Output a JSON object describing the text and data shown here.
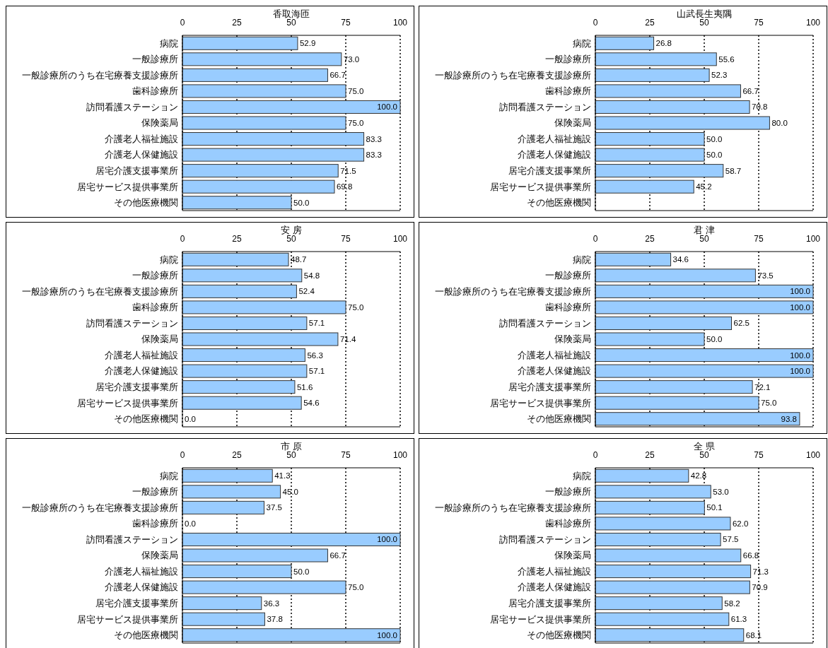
{
  "chart_data": [
    {
      "type": "bar",
      "orientation": "horizontal",
      "title": "香取海匝",
      "categories": [
        "病院",
        "一般診療所",
        "一般診療所のうち在宅療養支援診療所",
        "歯科診療所",
        "訪問看護ステーション",
        "保険薬局",
        "介護老人福祉施設",
        "介護老人保健施設",
        "居宅介護支援事業所",
        "居宅サービス提供事業所",
        "その他医療機関"
      ],
      "values": [
        52.9,
        73.0,
        66.7,
        75.0,
        100.0,
        75.0,
        83.3,
        83.3,
        71.5,
        69.8,
        50.0
      ],
      "value_labels": [
        "52.9",
        "73.0",
        "66.7",
        "75.0",
        "100.0",
        "75.0",
        "83.3",
        "83.3",
        "71.5",
        "69.8",
        "50.0"
      ],
      "color": "#99ccff",
      "xlim": [
        0,
        100
      ],
      "xticks": [
        0,
        25,
        50,
        75,
        100
      ],
      "grid": "x"
    },
    {
      "type": "bar",
      "orientation": "horizontal",
      "title": "山武長生夷隅",
      "categories": [
        "病院",
        "一般診療所",
        "一般診療所のうち在宅療養支援診療所",
        "歯科診療所",
        "訪問看護ステーション",
        "保険薬局",
        "介護老人福祉施設",
        "介護老人保健施設",
        "居宅介護支援事業所",
        "居宅サービス提供事業所",
        "その他医療機関"
      ],
      "values": [
        26.8,
        55.6,
        52.3,
        66.7,
        70.8,
        80.0,
        50.0,
        50.0,
        58.7,
        45.2,
        null
      ],
      "value_labels": [
        "26.8",
        "55.6",
        "52.3",
        "66.7",
        "70.8",
        "80.0",
        "50.0",
        "50.0",
        "58.7",
        "45.2",
        null
      ],
      "color": "#99ccff",
      "xlim": [
        0,
        100
      ],
      "xticks": [
        0,
        25,
        50,
        75,
        100
      ],
      "grid": "x"
    },
    {
      "type": "bar",
      "orientation": "horizontal",
      "title": "安 房",
      "categories": [
        "病院",
        "一般診療所",
        "一般診療所のうち在宅療養支援診療所",
        "歯科診療所",
        "訪問看護ステーション",
        "保険薬局",
        "介護老人福祉施設",
        "介護老人保健施設",
        "居宅介護支援事業所",
        "居宅サービス提供事業所",
        "その他医療機関"
      ],
      "values": [
        48.7,
        54.8,
        52.4,
        75.0,
        57.1,
        71.4,
        56.3,
        57.1,
        51.6,
        54.6,
        0.0
      ],
      "value_labels": [
        "48.7",
        "54.8",
        "52.4",
        "75.0",
        "57.1",
        "71.4",
        "56.3",
        "57.1",
        "51.6",
        "54.6",
        "0.0"
      ],
      "color": "#99ccff",
      "xlim": [
        0,
        100
      ],
      "xticks": [
        0,
        25,
        50,
        75,
        100
      ],
      "grid": "x"
    },
    {
      "type": "bar",
      "orientation": "horizontal",
      "title": "君 津",
      "categories": [
        "病院",
        "一般診療所",
        "一般診療所のうち在宅療養支援診療所",
        "歯科診療所",
        "訪問看護ステーション",
        "保険薬局",
        "介護老人福祉施設",
        "介護老人保健施設",
        "居宅介護支援事業所",
        "居宅サービス提供事業所",
        "その他医療機関"
      ],
      "values": [
        34.6,
        73.5,
        100.0,
        100.0,
        62.5,
        50.0,
        100.0,
        100.0,
        72.1,
        75.0,
        93.8
      ],
      "value_labels": [
        "34.6",
        "73.5",
        "100.0",
        "100.0",
        "62.5",
        "50.0",
        "100.0",
        "100.0",
        "72.1",
        "75.0",
        "93.8"
      ],
      "color": "#99ccff",
      "xlim": [
        0,
        100
      ],
      "xticks": [
        0,
        25,
        50,
        75,
        100
      ],
      "grid": "x"
    },
    {
      "type": "bar",
      "orientation": "horizontal",
      "title": "市 原",
      "categories": [
        "病院",
        "一般診療所",
        "一般診療所のうち在宅療養支援診療所",
        "歯科診療所",
        "訪問看護ステーション",
        "保険薬局",
        "介護老人福祉施設",
        "介護老人保健施設",
        "居宅介護支援事業所",
        "居宅サービス提供事業所",
        "その他医療機関"
      ],
      "values": [
        41.3,
        45.0,
        37.5,
        0.0,
        100.0,
        66.7,
        50.0,
        75.0,
        36.3,
        37.8,
        100.0
      ],
      "value_labels": [
        "41.3",
        "45.0",
        "37.5",
        "0.0",
        "100.0",
        "66.7",
        "50.0",
        "75.0",
        "36.3",
        "37.8",
        "100.0"
      ],
      "color": "#99ccff",
      "xlim": [
        0,
        100
      ],
      "xticks": [
        0,
        25,
        50,
        75,
        100
      ],
      "grid": "x"
    },
    {
      "type": "bar",
      "orientation": "horizontal",
      "title": "全 県",
      "categories": [
        "病院",
        "一般診療所",
        "一般診療所のうち在宅療養支援診療所",
        "歯科診療所",
        "訪問看護ステーション",
        "保険薬局",
        "介護老人福祉施設",
        "介護老人保健施設",
        "居宅介護支援事業所",
        "居宅サービス提供事業所",
        "その他医療機関"
      ],
      "values": [
        42.8,
        53.0,
        50.1,
        62.0,
        57.5,
        66.8,
        71.3,
        70.9,
        58.2,
        61.3,
        68.1
      ],
      "value_labels": [
        "42.8",
        "53.0",
        "50.1",
        "62.0",
        "57.5",
        "66.8",
        "71.3",
        "70.9",
        "58.2",
        "61.3",
        "68.1"
      ],
      "color": "#99ccff",
      "xlim": [
        0,
        100
      ],
      "xticks": [
        0,
        25,
        50,
        75,
        100
      ],
      "grid": "x"
    }
  ]
}
